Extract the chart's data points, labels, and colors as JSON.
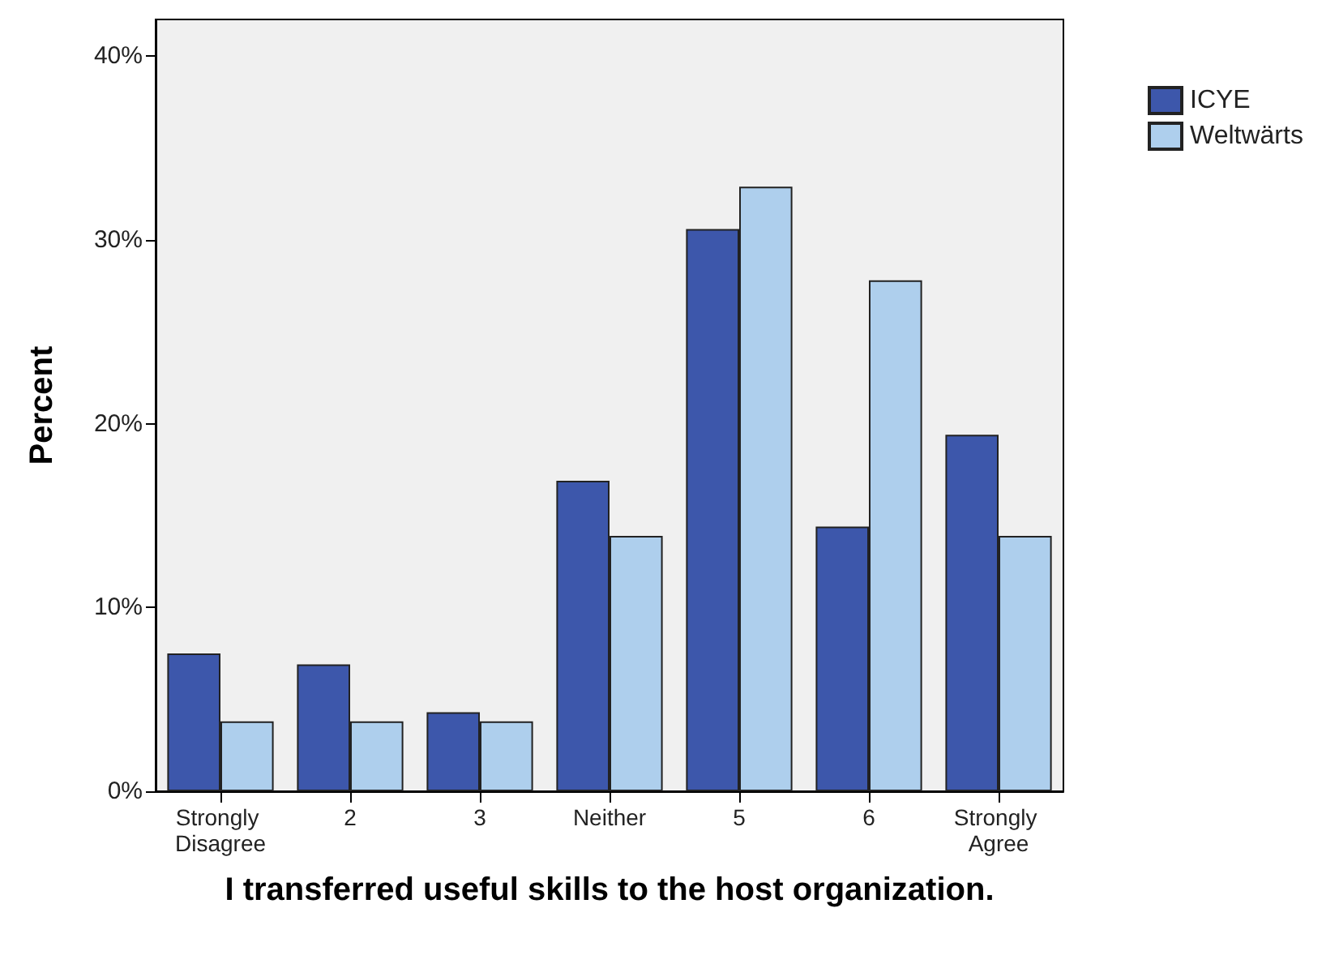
{
  "chart_data": {
    "type": "bar",
    "xlabel": "I transferred useful skills to the host organization.",
    "ylabel": "Percent",
    "categories": [
      "Strongly Disagree",
      "2",
      "3",
      "Neither",
      "5",
      "6",
      "Strongly Agree"
    ],
    "series": [
      {
        "name": "ICYE",
        "color": "#3d57ab",
        "values": [
          7.5,
          6.9,
          4.3,
          16.9,
          30.6,
          14.4,
          19.4
        ]
      },
      {
        "name": "Weltwärts",
        "color": "#aecfed",
        "values": [
          3.8,
          3.8,
          3.8,
          13.9,
          32.9,
          27.8,
          13.9
        ]
      }
    ],
    "ylim": [
      0,
      42
    ],
    "yticks": [
      {
        "value": 0,
        "label": "0%"
      },
      {
        "value": 10,
        "label": "10%"
      },
      {
        "value": 20,
        "label": "20%"
      },
      {
        "value": 30,
        "label": "30%"
      },
      {
        "value": 40,
        "label": "40%"
      }
    ],
    "grid": false,
    "legend": "top right"
  }
}
